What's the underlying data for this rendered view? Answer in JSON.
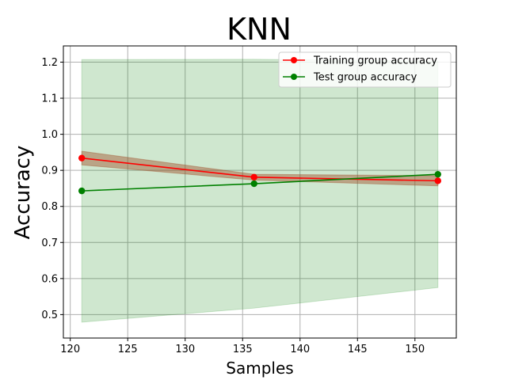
{
  "chart_data": {
    "type": "line",
    "title": "KNN",
    "xlabel": "Samples",
    "ylabel": "Accuracy",
    "x": [
      121,
      136,
      152
    ],
    "xlim": [
      119.4,
      153.6
    ],
    "ylim": [
      0.435,
      1.245
    ],
    "xticks": [
      120,
      125,
      130,
      135,
      140,
      145,
      150
    ],
    "yticks": [
      0.5,
      0.6,
      0.7,
      0.8,
      0.9,
      1.0,
      1.1,
      1.2
    ],
    "xtick_labels": [
      "120",
      "125",
      "130",
      "135",
      "140",
      "145",
      "150"
    ],
    "ytick_labels": [
      "0.5",
      "0.6",
      "0.7",
      "0.8",
      "0.9",
      "1.0",
      "1.1",
      "1.2"
    ],
    "grid": true,
    "legend_position": "top-right",
    "series": [
      {
        "name": "Training group accuracy",
        "color": "#ff0000",
        "band_color": "#a0522d",
        "band_opacity": 0.45,
        "values": [
          0.934,
          0.881,
          0.871
        ],
        "band_lower": [
          0.915,
          0.873,
          0.857
        ],
        "band_upper": [
          0.953,
          0.889,
          0.885
        ]
      },
      {
        "name": "Test group accuracy",
        "color": "#008000",
        "band_color": "#008000",
        "band_opacity": 0.19,
        "values": [
          0.843,
          0.863,
          0.889
        ],
        "band_lower": [
          0.479,
          0.518,
          0.575
        ],
        "band_upper": [
          1.207,
          1.208,
          1.203
        ]
      }
    ]
  }
}
